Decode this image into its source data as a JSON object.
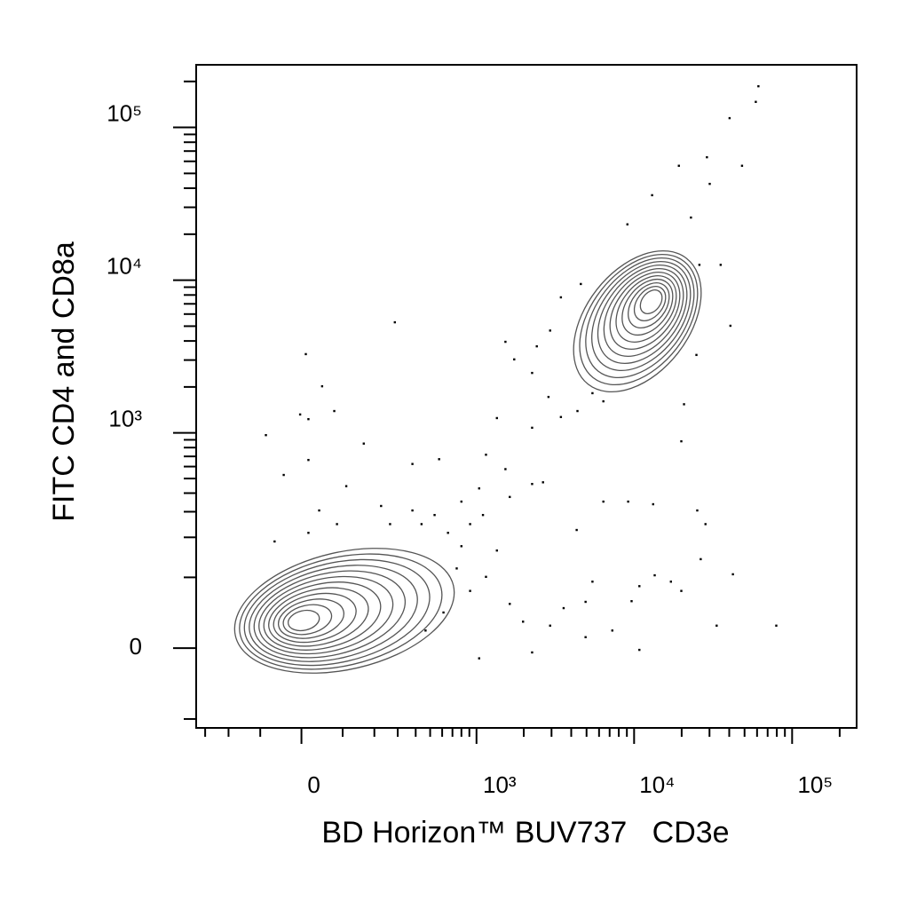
{
  "chart_data": {
    "type": "scatter",
    "x_label": "BD Horizon™ BUV737   CD3e",
    "y_label": "FITC CD4 and CD8a",
    "xscale": "biexponential",
    "yscale": "biexponential",
    "xlim": [
      -347,
      256000
    ],
    "ylim": [
      -118,
      257000
    ],
    "xticks": [
      0,
      {
        "value": 1000,
        "label": "10³"
      },
      {
        "value": 10000,
        "label": "10⁴"
      },
      {
        "value": 100000,
        "label": "10⁵"
      }
    ],
    "yticks": [
      0,
      {
        "value": 1000,
        "label": "10³"
      },
      {
        "value": 10000,
        "label": "10⁴"
      },
      {
        "value": 100000,
        "label": "10⁵"
      }
    ],
    "xminorticks": [
      -300,
      -200,
      -100,
      100,
      200,
      300,
      400,
      500,
      600,
      700,
      800,
      900,
      2000,
      3000,
      4000,
      5000,
      6000,
      7000,
      8000,
      9000,
      20000,
      30000,
      40000,
      50000,
      60000,
      70000,
      80000,
      90000,
      200000
    ],
    "yminorticks": [
      -100,
      100,
      200,
      300,
      400,
      500,
      600,
      700,
      800,
      900,
      2000,
      3000,
      4000,
      5000,
      6000,
      7000,
      8000,
      9000,
      20000,
      30000,
      40000,
      50000,
      60000,
      70000,
      80000,
      90000,
      200000
    ],
    "color": "#000000",
    "x": [
      61200,
      58900,
      40200,
      19200,
      28900,
      48200,
      30100,
      13000,
      22900,
      9070,
      286,
      10,
      48,
      -85,
      -3,
      16,
      78,
      163,
      -41,
      16,
      380,
      573,
      1150,
      1530,
      2260,
      2650,
      1350,
      2260,
      3440,
      5450,
      4380,
      2870,
      2260,
      1740,
      1530,
      2420,
      3440,
      2940,
      4600,
      6390,
      20700,
      19900,
      35300,
      40700,
      24800,
      25900,
      6390,
      9170,
      13200,
      25100,
      28300,
      4330,
      26400,
      42200,
      17100,
      13500,
      10800,
      9640,
      5450,
      3580,
      2940,
      4930,
      7280,
      10800,
      2260,
      33300,
      79400,
      4930,
      19900,
      1980,
      1630,
      1040,
      1150,
      800,
      655,
      910,
      535,
      1100,
      746,
      910,
      612,
      466,
      1350,
      438,
      264,
      85,
      41,
      110,
      226,
      16,
      -63,
      380,
      1040,
      1630,
      800
    ],
    "y": [
      186000,
      147000,
      115000,
      56100,
      63800,
      56100,
      42700,
      36000,
      25700,
      23200,
      5300,
      3280,
      2020,
      966,
      1320,
      1230,
      1390,
      850,
      528,
      663,
      624,
      671,
      718,
      577,
      460,
      472,
      1250,
      1080,
      1270,
      1820,
      1390,
      1720,
      2470,
      3030,
      3950,
      3690,
      7720,
      4680,
      9440,
      1610,
      1540,
      880,
      12600,
      5030,
      3240,
      12600,
      351,
      351,
      337,
      306,
      247,
      225,
      139,
      106,
      92,
      104,
      84,
      60,
      92,
      50,
      27,
      13,
      21,
      -2,
      -5,
      27,
      27,
      59,
      76,
      32,
      56,
      -12,
      101,
      173,
      215,
      247,
      285,
      285,
      118,
      76,
      44,
      21,
      161,
      247,
      247,
      247,
      306,
      445,
      328,
      215,
      187,
      306,
      430,
      377,
      351
    ]
  }
}
